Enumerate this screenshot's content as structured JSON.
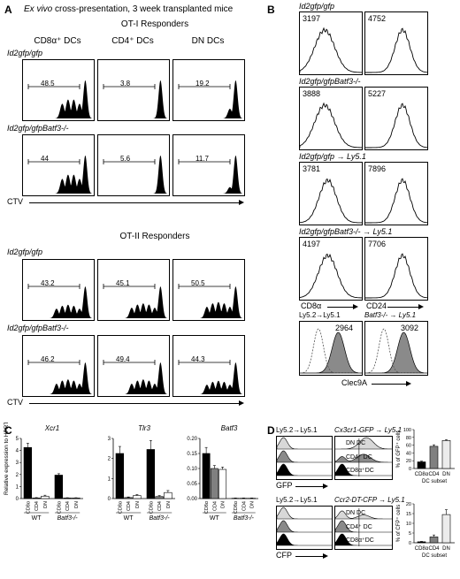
{
  "panelA": {
    "letter": "A",
    "title_italic": "Ex vivo",
    "title_rest": "cross-presentation, 3 week transplanted mice",
    "ot1_header": "OT-I Responders",
    "ot2_header": "OT-II Responders",
    "columns": [
      "CD8α⁺ DCs",
      "CD4⁺ DCs",
      "DN DCs"
    ],
    "ot1_rows": [
      {
        "label": "Id2gfp/gfp",
        "values": [
          "48.5",
          "3.8",
          "19.2"
        ]
      },
      {
        "label": "Id2gfp/gfpBatf3-/-",
        "values": [
          "44",
          "5.6",
          "11.7"
        ]
      }
    ],
    "ot2_rows": [
      {
        "label": "Id2gfp/gfp",
        "values": [
          "43.2",
          "45.1",
          "50.5"
        ]
      },
      {
        "label": "Id2gfp/gfpBatf3-/-",
        "values": [
          "46.2",
          "49.4",
          "44.3"
        ]
      }
    ],
    "xaxis": "CTV"
  },
  "panelB": {
    "letter": "B",
    "rows": [
      {
        "label": "Id2gfp/gfp",
        "left": "3197",
        "right": "4752"
      },
      {
        "label": "Id2gfp/gfpBatf3-/-",
        "left": "3888",
        "right": "5227"
      },
      {
        "label": "Id2gfp/gfp → Ly5.1",
        "left": "3781",
        "right": "7896"
      },
      {
        "label": "Id2gfp/gfpBatf3-/- → Ly5.1",
        "left": "4197",
        "right": "7706"
      }
    ],
    "xaxis_left": "CD8α",
    "xaxis_right": "CD24",
    "clec_left_label": "Ly5.2→Ly5.1",
    "clec_right_label": "Batf3-/- → Ly5.1",
    "clec_left_value": "2964",
    "clec_right_value": "3092",
    "clec_axis": "Clec9A"
  },
  "panelC": {
    "letter": "C",
    "ylabel": "Relative expression to HPRT",
    "bar_colors": [
      "#000000",
      "#808080",
      "#ffffff"
    ],
    "chart_data": [
      {
        "type": "bar",
        "title": "Xcr1",
        "ylim": [
          0,
          5
        ],
        "yticks": [
          "0",
          "1",
          "2",
          "3",
          "4",
          "5"
        ],
        "categories": [
          "CD8α",
          "CD4",
          "DN",
          "CD8α",
          "CD4",
          "DN"
        ],
        "groups": [
          "WT",
          "Batf3-/-"
        ],
        "values": [
          4.25,
          0.05,
          0.2,
          1.95,
          0.05,
          0.05
        ],
        "errors": [
          0.35,
          0.03,
          0.08,
          0.12,
          0.02,
          0.02
        ]
      },
      {
        "type": "bar",
        "title": "Tlr3",
        "ylim": [
          0,
          3
        ],
        "yticks": [
          "0",
          "1",
          "2",
          "3"
        ],
        "categories": [
          "CD8α",
          "CD4",
          "DN",
          "CD8α",
          "CD4",
          "DN"
        ],
        "groups": [
          "WT",
          "Batf3-/-"
        ],
        "values": [
          2.25,
          0.05,
          0.15,
          2.45,
          0.1,
          0.3
        ],
        "errors": [
          0.35,
          0.03,
          0.05,
          0.45,
          0.05,
          0.1
        ]
      },
      {
        "type": "bar",
        "title": "Batf3",
        "ylim": [
          0,
          0.2
        ],
        "yticks": [
          "0.00",
          "0.05",
          "0.10",
          "0.15",
          "0.20"
        ],
        "categories": [
          "CD8α",
          "CD4",
          "DN",
          "CD8α",
          "CD4",
          "DN"
        ],
        "groups": [
          "WT",
          "Batf3-/-"
        ],
        "values": [
          0.15,
          0.1,
          0.097,
          0.001,
          0.001,
          0.001
        ],
        "errors": [
          0.02,
          0.01,
          0.008,
          0.001,
          0.001,
          0.001
        ]
      }
    ]
  },
  "panelD": {
    "letter": "D",
    "top_left_label": "Ly5.2→Ly5.1",
    "top_right_label": "Cx3cr1-GFP → Ly5.1",
    "bottom_left_label": "Ly5.2→Ly5.1",
    "bottom_right_label": "Ccr2-DT-CFP → Ly5.1",
    "subsets": [
      "DN DC",
      "CD4⁺ DC",
      "CD8α⁺DC"
    ],
    "top_axis": "GFP",
    "bottom_axis": "CFP",
    "chart_data": [
      {
        "type": "bar",
        "ylabel": "% of GFP⁺ cells",
        "xlabel": "DC subset",
        "categories": [
          "CD8α",
          "CD4",
          "DN"
        ],
        "values": [
          17,
          57,
          72
        ],
        "errors": [
          2,
          4,
          2
        ],
        "ylim": [
          0,
          100
        ],
        "yticks": [
          "0",
          "20",
          "40",
          "60",
          "80",
          "100"
        ]
      },
      {
        "type": "bar",
        "ylabel": "% of CFP⁺ cells",
        "xlabel": "DC subset",
        "categories": [
          "CD8α",
          "CD4",
          "DN"
        ],
        "values": [
          0.5,
          3,
          14.5
        ],
        "errors": [
          0.2,
          1,
          2.5
        ],
        "ylim": [
          0,
          20
        ],
        "yticks": [
          "0",
          "5",
          "10",
          "15",
          "20"
        ]
      }
    ]
  }
}
